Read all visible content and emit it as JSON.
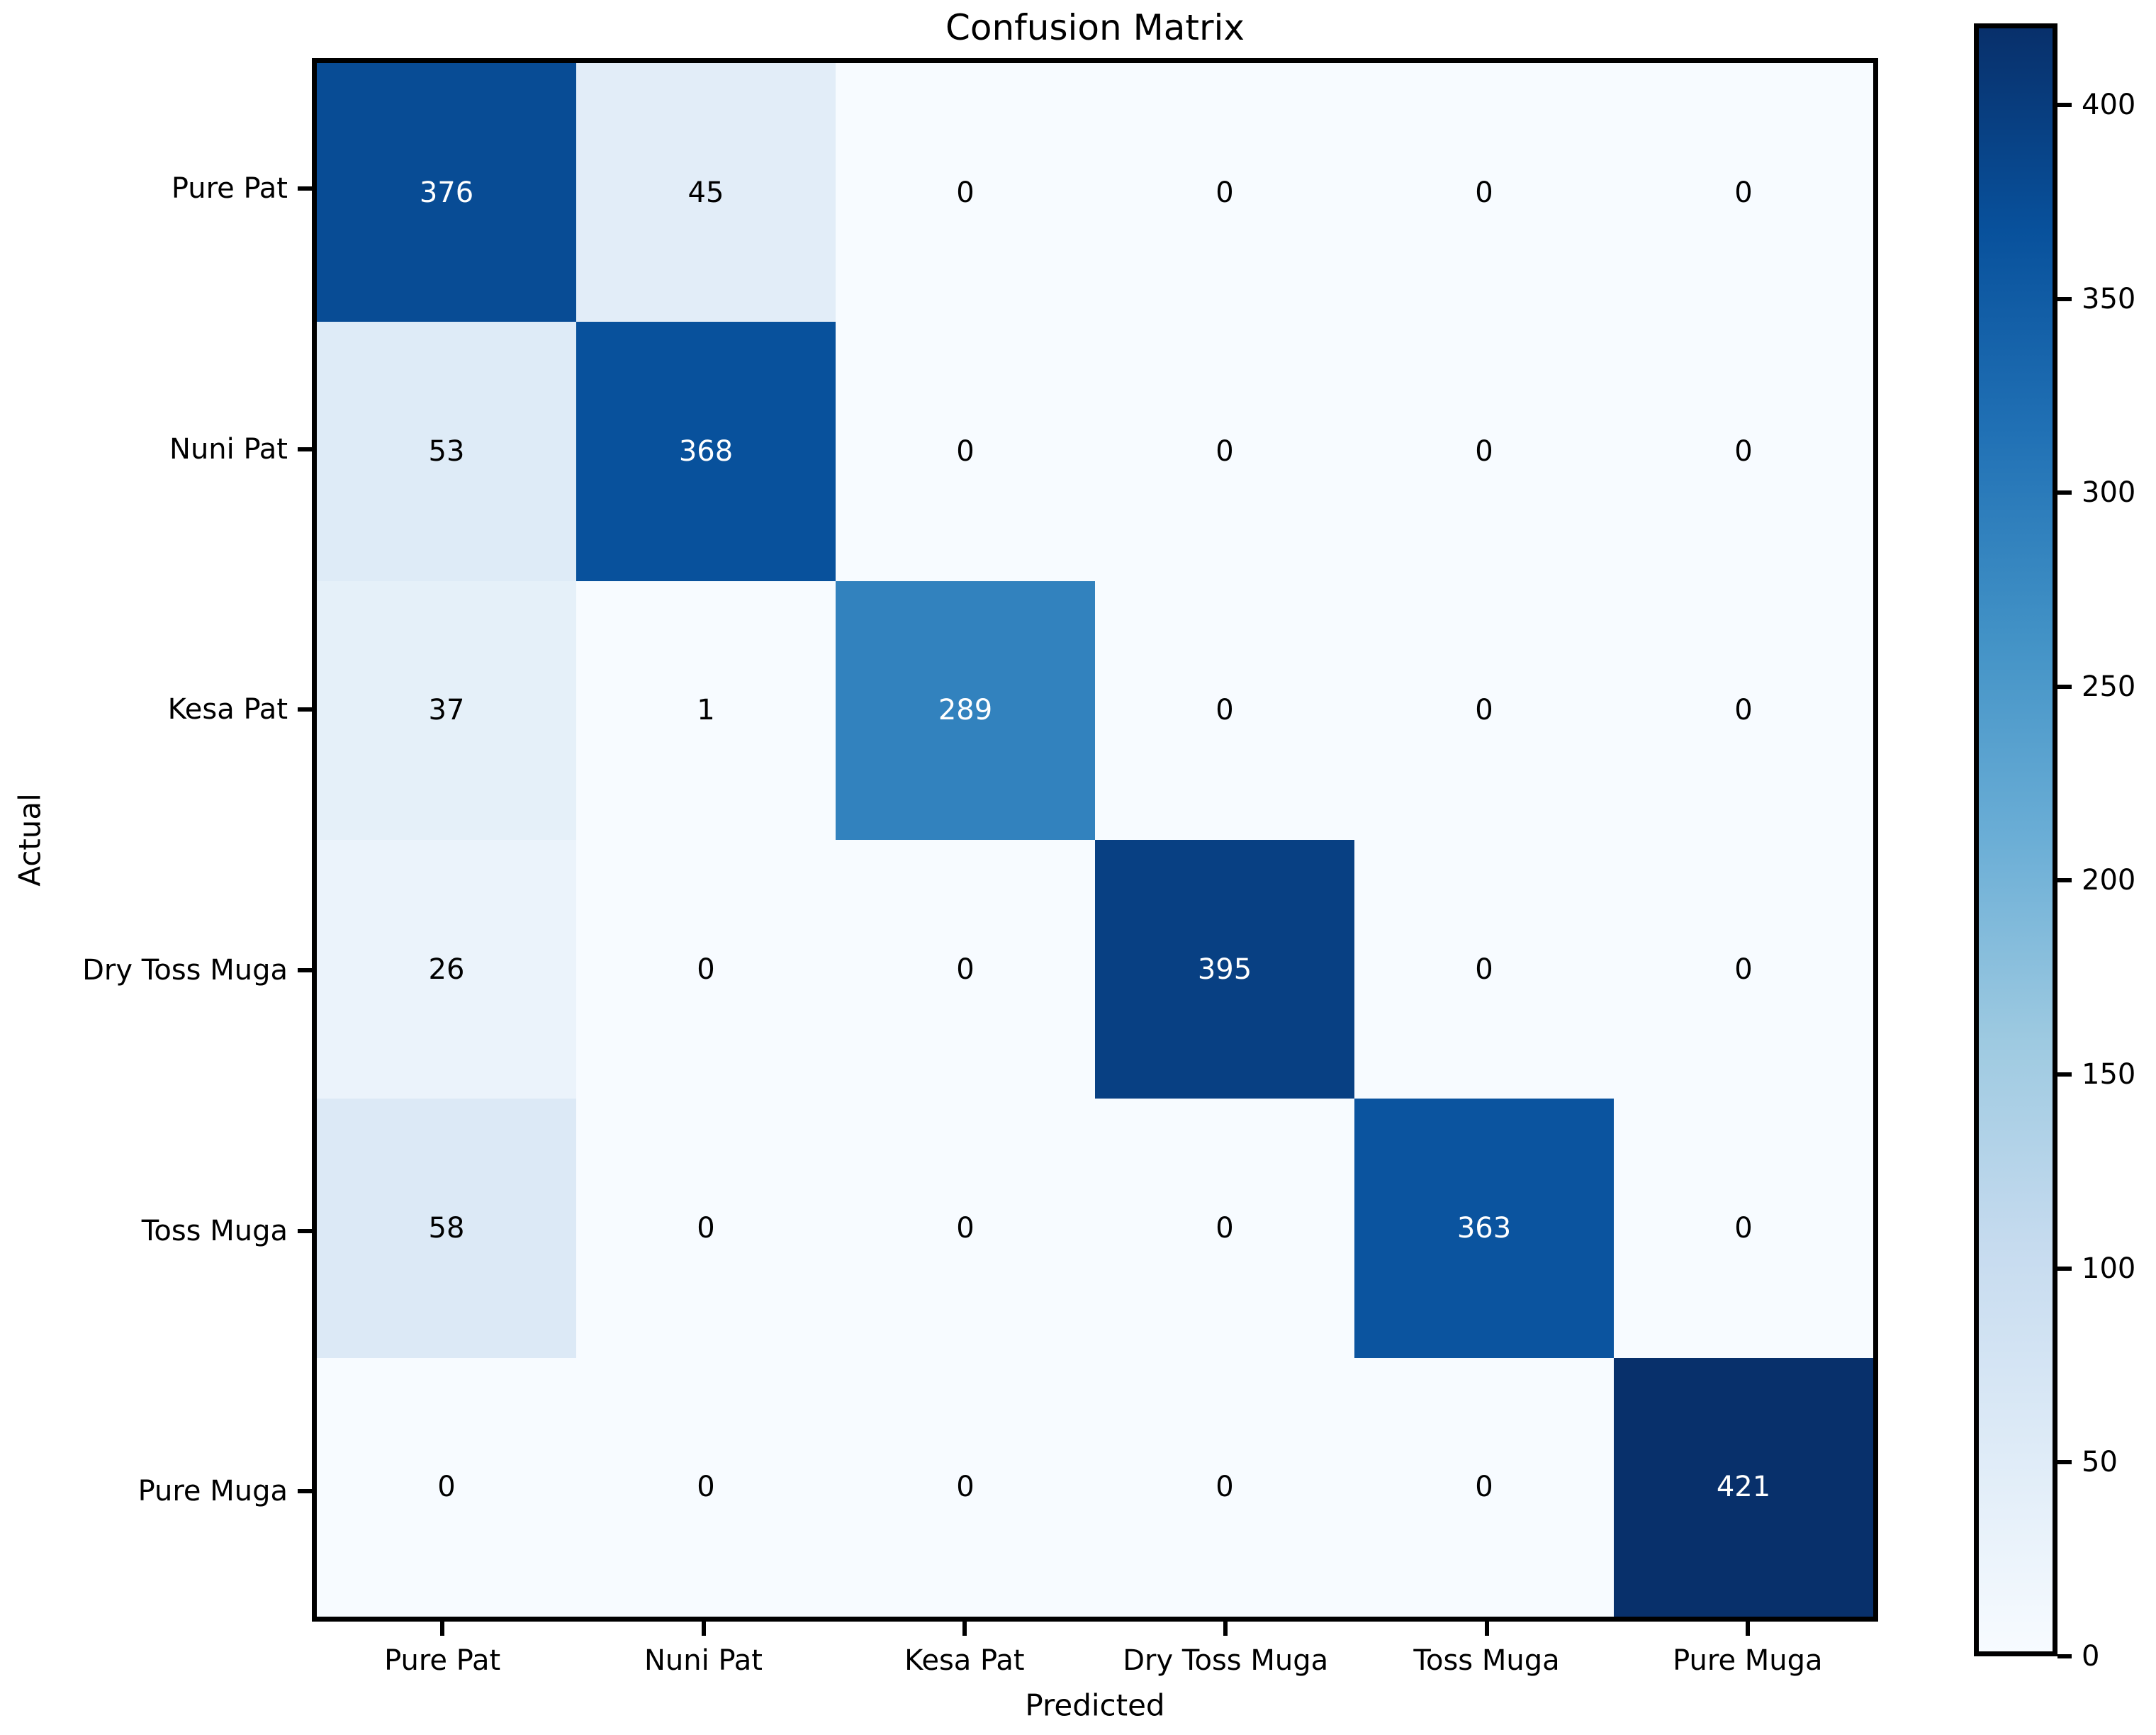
{
  "chart_data": {
    "type": "heatmap",
    "title": "Confusion Matrix",
    "xlabel": "Predicted",
    "ylabel": "Actual",
    "categories": [
      "Pure Pat",
      "Nuni Pat",
      "Kesa Pat",
      "Dry Toss Muga",
      "Toss Muga",
      "Pure Muga"
    ],
    "matrix": [
      [
        376,
        45,
        0,
        0,
        0,
        0
      ],
      [
        53,
        368,
        0,
        0,
        0,
        0
      ],
      [
        37,
        1,
        289,
        0,
        0,
        0
      ],
      [
        26,
        0,
        0,
        395,
        0,
        0
      ],
      [
        58,
        0,
        0,
        0,
        363,
        0
      ],
      [
        0,
        0,
        0,
        0,
        0,
        421
      ]
    ],
    "vmin": 0,
    "vmax": 421,
    "colorbar_ticks": [
      0,
      50,
      100,
      150,
      200,
      250,
      300,
      350,
      400
    ],
    "colorbar_position": "right",
    "grid": false,
    "colormap": {
      "name": "Blues",
      "anchors": [
        "#f7fbff",
        "#deebf7",
        "#c6dbef",
        "#9ecae1",
        "#6baed6",
        "#4292c6",
        "#2171b5",
        "#08519c",
        "#08306b"
      ]
    },
    "cell_text_color_light_bg": "#000000",
    "cell_text_color_dark_bg": "#ffffff",
    "axis_color": "#000000",
    "background_color": "#ffffff"
  }
}
